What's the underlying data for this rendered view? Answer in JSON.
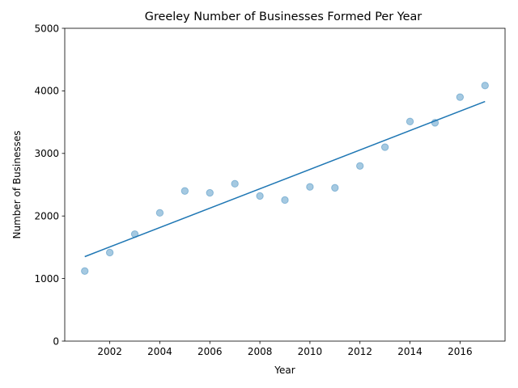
{
  "chart_data": {
    "type": "scatter",
    "title": "Greeley Number of Businesses Formed Per Year",
    "xlabel": "Year",
    "ylabel": "Number of Businesses",
    "xlim": [
      2000.2,
      2017.8
    ],
    "ylim": [
      0,
      5000
    ],
    "x_ticks": [
      "2002",
      "2004",
      "2006",
      "2008",
      "2010",
      "2012",
      "2014",
      "2016"
    ],
    "y_ticks": [
      "0",
      "1000",
      "2000",
      "3000",
      "4000",
      "5000"
    ],
    "grid": false,
    "legend": "none",
    "series": [
      {
        "kind": "scatter",
        "color": "#1f77b4",
        "opacity": 0.4,
        "x": [
          2001,
          2002,
          2003,
          2004,
          2005,
          2006,
          2007,
          2008,
          2009,
          2010,
          2011,
          2012,
          2013,
          2014,
          2015,
          2016,
          2017
        ],
        "y": [
          1120,
          1415,
          1710,
          2050,
          2400,
          2370,
          2515,
          2320,
          2255,
          2465,
          2450,
          2800,
          3100,
          3510,
          3490,
          3900,
          4085
        ]
      },
      {
        "kind": "line",
        "color": "#1f77b4",
        "x": [
          2001,
          2017
        ],
        "y": [
          1350,
          3830
        ]
      }
    ]
  }
}
